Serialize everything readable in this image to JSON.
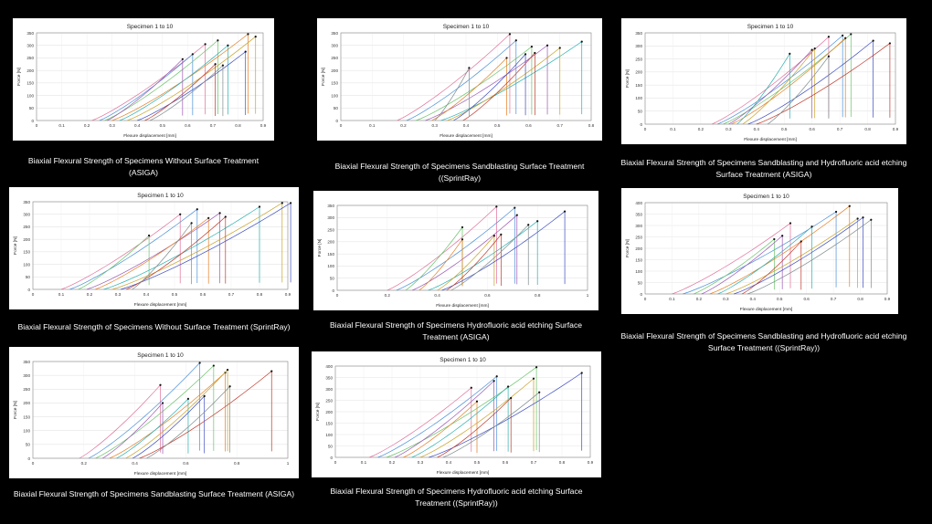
{
  "colors": {
    "background": "#000000",
    "panel": "#ffffff",
    "series": [
      "#e0709a",
      "#4a8fd8",
      "#6bc36b",
      "#9b59b6",
      "#e67e22",
      "#2ab0b0",
      "#c9a227",
      "#3b4cc0",
      "#c0392b",
      "#7f8c8d"
    ],
    "marker": "#111111"
  },
  "charts": [
    {
      "id": "a",
      "chart_data": {
        "type": "line",
        "title": "Specimen 1 to 10",
        "xlabel": "Flexure displacement [mm]",
        "ylabel": "Force [N]",
        "xlim": [
          0,
          0.9
        ],
        "ylim": [
          0,
          350
        ],
        "xticks": [
          "0",
          "0.1",
          "0.2",
          "0.3",
          "0.4",
          "0.5",
          "0.6",
          "0.7",
          "0.8",
          "0.9"
        ],
        "yticks": [
          "0",
          "50",
          "100",
          "150",
          "200",
          "250",
          "300",
          "350"
        ],
        "series": [
          {
            "x0": 0.22,
            "fx": 0.67,
            "fy": 305
          },
          {
            "x0": 0.25,
            "fx": 0.62,
            "fy": 265
          },
          {
            "x0": 0.27,
            "fx": 0.72,
            "fy": 320
          },
          {
            "x0": 0.28,
            "fx": 0.58,
            "fy": 245
          },
          {
            "x0": 0.3,
            "fx": 0.84,
            "fy": 345
          },
          {
            "x0": 0.33,
            "fx": 0.76,
            "fy": 300
          },
          {
            "x0": 0.36,
            "fx": 0.87,
            "fy": 335
          },
          {
            "x0": 0.4,
            "fx": 0.83,
            "fy": 275
          },
          {
            "x0": 0.43,
            "fx": 0.71,
            "fy": 225
          },
          {
            "x0": 0.45,
            "fx": 0.74,
            "fy": 220
          }
        ]
      },
      "caption": "Biaxial Flexural Strength of Specimens Without Surface Treatment (ASIGA)"
    },
    {
      "id": "b",
      "chart_data": {
        "type": "line",
        "title": "Specimen 1 to 10",
        "xlabel": "Flexure displacement [mm]",
        "ylabel": "Force [N]",
        "xlim": [
          0,
          0.8
        ],
        "ylim": [
          0,
          350
        ],
        "xticks": [
          "0",
          "0.1",
          "0.2",
          "0.3",
          "0.4",
          "0.5",
          "0.6",
          "0.7",
          "0.8"
        ],
        "yticks": [
          "0",
          "50",
          "100",
          "150",
          "200",
          "250",
          "300",
          "350"
        ],
        "series": [
          {
            "x0": 0.18,
            "fx": 0.54,
            "fy": 345
          },
          {
            "x0": 0.21,
            "fx": 0.56,
            "fy": 320
          },
          {
            "x0": 0.24,
            "fx": 0.61,
            "fy": 295
          },
          {
            "x0": 0.27,
            "fx": 0.66,
            "fy": 300
          },
          {
            "x0": 0.29,
            "fx": 0.53,
            "fy": 250
          },
          {
            "x0": 0.32,
            "fx": 0.77,
            "fy": 315
          },
          {
            "x0": 0.34,
            "fx": 0.7,
            "fy": 290
          },
          {
            "x0": 0.36,
            "fx": 0.59,
            "fy": 265
          },
          {
            "x0": 0.39,
            "fx": 0.62,
            "fy": 270
          },
          {
            "x0": 0.3,
            "fx": 0.41,
            "fy": 210
          }
        ]
      },
      "caption": "Biaxial Flexural Strength of Specimens Sandblasting Surface Treatment ((SprintRay)"
    },
    {
      "id": "c",
      "chart_data": {
        "type": "line",
        "title": "Specimen 1 to 10",
        "xlabel": "Flexure displacement [mm]",
        "ylabel": "Force [N]",
        "xlim": [
          0,
          0.9
        ],
        "ylim": [
          0,
          350
        ],
        "xticks": [
          "0",
          "0.1",
          "0.2",
          "0.3",
          "0.4",
          "0.5",
          "0.6",
          "0.7",
          "0.8",
          "0.9"
        ],
        "yticks": [
          "0",
          "50",
          "100",
          "150",
          "200",
          "250",
          "300",
          "350"
        ],
        "series": [
          {
            "x0": 0.24,
            "fx": 0.66,
            "fy": 335
          },
          {
            "x0": 0.26,
            "fx": 0.71,
            "fy": 340
          },
          {
            "x0": 0.28,
            "fx": 0.74,
            "fy": 345
          },
          {
            "x0": 0.3,
            "fx": 0.6,
            "fy": 285
          },
          {
            "x0": 0.31,
            "fx": 0.72,
            "fy": 330
          },
          {
            "x0": 0.33,
            "fx": 0.52,
            "fy": 270
          },
          {
            "x0": 0.35,
            "fx": 0.61,
            "fy": 290
          },
          {
            "x0": 0.37,
            "fx": 0.82,
            "fy": 320
          },
          {
            "x0": 0.4,
            "fx": 0.88,
            "fy": 310
          },
          {
            "x0": 0.44,
            "fx": 0.66,
            "fy": 260
          }
        ]
      },
      "caption": "Biaxial Flexural Strength of Specimens Sandblasting and Hydrofluoric acid etching Surface Treatment (ASIGA)"
    },
    {
      "id": "d",
      "chart_data": {
        "type": "line",
        "title": "Specimen 1 to 10",
        "xlabel": "Flexure displacement [mm]",
        "ylabel": "Force [N]",
        "xlim": [
          0,
          0.9
        ],
        "ylim": [
          0,
          350
        ],
        "xticks": [
          "0",
          "0.1",
          "0.2",
          "0.3",
          "0.4",
          "0.5",
          "0.6",
          "0.7",
          "0.8",
          "0.9"
        ],
        "yticks": [
          "0",
          "50",
          "100",
          "150",
          "200",
          "250",
          "300",
          "350"
        ],
        "series": [
          {
            "x0": 0.1,
            "fx": 0.52,
            "fy": 300
          },
          {
            "x0": 0.13,
            "fx": 0.58,
            "fy": 320
          },
          {
            "x0": 0.16,
            "fx": 0.41,
            "fy": 215
          },
          {
            "x0": 0.19,
            "fx": 0.66,
            "fy": 305
          },
          {
            "x0": 0.22,
            "fx": 0.62,
            "fy": 285
          },
          {
            "x0": 0.25,
            "fx": 0.8,
            "fy": 330
          },
          {
            "x0": 0.28,
            "fx": 0.88,
            "fy": 345
          },
          {
            "x0": 0.31,
            "fx": 0.91,
            "fy": 345
          },
          {
            "x0": 0.33,
            "fx": 0.68,
            "fy": 290
          },
          {
            "x0": 0.35,
            "fx": 0.56,
            "fy": 265
          }
        ]
      },
      "caption": "Biaxial Flexural Strength of Specimens Without Surface Treatment (SprintRay)"
    },
    {
      "id": "e",
      "chart_data": {
        "type": "line",
        "title": "",
        "xlabel": "Flexure displacement [mm]",
        "ylabel": "Force [N]",
        "xlim": [
          0,
          1.1
        ],
        "ylim": [
          0,
          350
        ],
        "xticks": [
          "0",
          "0.2",
          "0.4",
          "0.6",
          "0.8",
          "1"
        ],
        "yticks": [
          "0",
          "50",
          "100",
          "150",
          "200",
          "250",
          "300",
          "350"
        ],
        "series": [
          {
            "x0": 0.22,
            "fx": 0.7,
            "fy": 345
          },
          {
            "x0": 0.26,
            "fx": 0.78,
            "fy": 340
          },
          {
            "x0": 0.3,
            "fx": 0.55,
            "fy": 260
          },
          {
            "x0": 0.33,
            "fx": 0.79,
            "fy": 310
          },
          {
            "x0": 0.36,
            "fx": 0.55,
            "fy": 210
          },
          {
            "x0": 0.4,
            "fx": 0.88,
            "fy": 285
          },
          {
            "x0": 0.44,
            "fx": 0.69,
            "fy": 225
          },
          {
            "x0": 0.46,
            "fx": 1.0,
            "fy": 325
          },
          {
            "x0": 0.48,
            "fx": 0.72,
            "fy": 230
          },
          {
            "x0": 0.5,
            "fx": 0.84,
            "fy": 270
          }
        ]
      },
      "caption": "Biaxial Flexural Strength of Specimens Hydrofluoric acid etching Surface Treatment (ASIGA)"
    },
    {
      "id": "f",
      "chart_data": {
        "type": "line",
        "title": "Specimen 1 to 10",
        "xlabel": "Flexure displacement [mm]",
        "ylabel": "Force [N]",
        "xlim": [
          0,
          0.9
        ],
        "ylim": [
          0,
          400
        ],
        "xticks": [
          "0",
          "0.1",
          "0.2",
          "0.3",
          "0.4",
          "0.5",
          "0.6",
          "0.7",
          "0.8",
          "0.9"
        ],
        "yticks": [
          "0",
          "50",
          "100",
          "150",
          "200",
          "250",
          "300",
          "350",
          "400"
        ],
        "series": [
          {
            "x0": 0.1,
            "fx": 0.54,
            "fy": 310
          },
          {
            "x0": 0.14,
            "fx": 0.71,
            "fy": 360
          },
          {
            "x0": 0.18,
            "fx": 0.48,
            "fy": 240
          },
          {
            "x0": 0.21,
            "fx": 0.51,
            "fy": 255
          },
          {
            "x0": 0.24,
            "fx": 0.76,
            "fy": 385
          },
          {
            "x0": 0.27,
            "fx": 0.62,
            "fy": 295
          },
          {
            "x0": 0.3,
            "fx": 0.79,
            "fy": 330
          },
          {
            "x0": 0.33,
            "fx": 0.81,
            "fy": 335
          },
          {
            "x0": 0.36,
            "fx": 0.58,
            "fy": 230
          },
          {
            "x0": 0.38,
            "fx": 0.84,
            "fy": 325
          }
        ]
      },
      "caption": "Biaxial Flexural Strength of Specimens Sandblasting and Hydrofluoric acid etching Surface Treatment ((SprintRay))"
    },
    {
      "id": "g",
      "chart_data": {
        "type": "line",
        "title": "Specimen 1 to 10",
        "xlabel": "Flexure displacement [mm]",
        "ylabel": "Force [N]",
        "xlim": [
          0,
          1.1
        ],
        "ylim": [
          0,
          350
        ],
        "xticks": [
          "0",
          "0.2",
          "0.4",
          "0.6",
          "0.8",
          "1"
        ],
        "yticks": [
          "0",
          "50",
          "100",
          "150",
          "200",
          "250",
          "300",
          "350"
        ],
        "series": [
          {
            "x0": 0.2,
            "fx": 0.55,
            "fy": 265
          },
          {
            "x0": 0.24,
            "fx": 0.72,
            "fy": 345
          },
          {
            "x0": 0.27,
            "fx": 0.78,
            "fy": 335
          },
          {
            "x0": 0.3,
            "fx": 0.56,
            "fy": 200
          },
          {
            "x0": 0.33,
            "fx": 0.83,
            "fy": 310
          },
          {
            "x0": 0.36,
            "fx": 0.67,
            "fy": 215
          },
          {
            "x0": 0.4,
            "fx": 0.84,
            "fy": 320
          },
          {
            "x0": 0.43,
            "fx": 0.74,
            "fy": 225
          },
          {
            "x0": 0.46,
            "fx": 1.03,
            "fy": 315
          },
          {
            "x0": 0.49,
            "fx": 0.85,
            "fy": 260
          }
        ]
      },
      "caption": "Biaxial Flexural Strength of Specimens Sandblasting Surface Treatment (ASIGA)"
    },
    {
      "id": "h",
      "chart_data": {
        "type": "line",
        "title": "Specimen 1 to 10",
        "xlabel": "Flexure displacement [mm]",
        "ylabel": "Force [N]",
        "xlim": [
          0,
          0.9
        ],
        "ylim": [
          0,
          400
        ],
        "xticks": [
          "0",
          "0.1",
          "0.2",
          "0.3",
          "0.4",
          "0.5",
          "0.6",
          "0.7",
          "0.8",
          "0.9"
        ],
        "yticks": [
          "0",
          "50",
          "100",
          "150",
          "200",
          "250",
          "300",
          "350",
          "400"
        ],
        "series": [
          {
            "x0": 0.12,
            "fx": 0.48,
            "fy": 305
          },
          {
            "x0": 0.15,
            "fx": 0.57,
            "fy": 355
          },
          {
            "x0": 0.18,
            "fx": 0.71,
            "fy": 395
          },
          {
            "x0": 0.21,
            "fx": 0.56,
            "fy": 335
          },
          {
            "x0": 0.24,
            "fx": 0.5,
            "fy": 245
          },
          {
            "x0": 0.27,
            "fx": 0.61,
            "fy": 310
          },
          {
            "x0": 0.3,
            "fx": 0.7,
            "fy": 345
          },
          {
            "x0": 0.33,
            "fx": 0.87,
            "fy": 370
          },
          {
            "x0": 0.36,
            "fx": 0.62,
            "fy": 260
          },
          {
            "x0": 0.38,
            "fx": 0.72,
            "fy": 285
          }
        ]
      },
      "caption": "Biaxial Flexural Strength of Specimens Hydrofluoric acid etching Surface Treatment ((SprintRay))"
    }
  ]
}
